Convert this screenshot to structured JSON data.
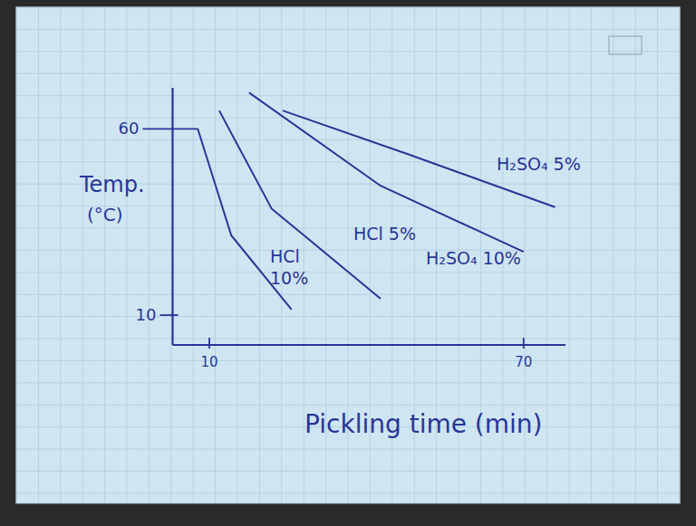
{
  "chart_data": {
    "type": "line",
    "x_label": "Pickling time (min)",
    "y_label": "Temp. (°C)",
    "xlim": [
      3,
      78
    ],
    "xticks": [
      10,
      70
    ],
    "ylim": [
      2,
      71
    ],
    "yticks": [
      10,
      60
    ],
    "grid": false,
    "series": [
      {
        "name": "HCl 10%",
        "color": "#2a3596",
        "x": [
          7.8,
          14.2,
          25.7
        ],
        "values": [
          60,
          31.4,
          11.5
        ]
      },
      {
        "name": "HCl 5%",
        "color": "#2a3596",
        "x": [
          11.9,
          21.9,
          42.7
        ],
        "values": [
          64.9,
          38.6,
          14.4
        ]
      },
      {
        "name": "H₂SO₄ 10%",
        "color": "#2a3596",
        "x": [
          17.6,
          42.7,
          70
        ],
        "values": [
          69.7,
          44.7,
          27
        ]
      },
      {
        "name": "H₂SO₄ 5%",
        "color": "#2a3596",
        "x": [
          24,
          47.9,
          76
        ],
        "values": [
          64.9,
          53.2,
          39
        ]
      }
    ]
  }
}
